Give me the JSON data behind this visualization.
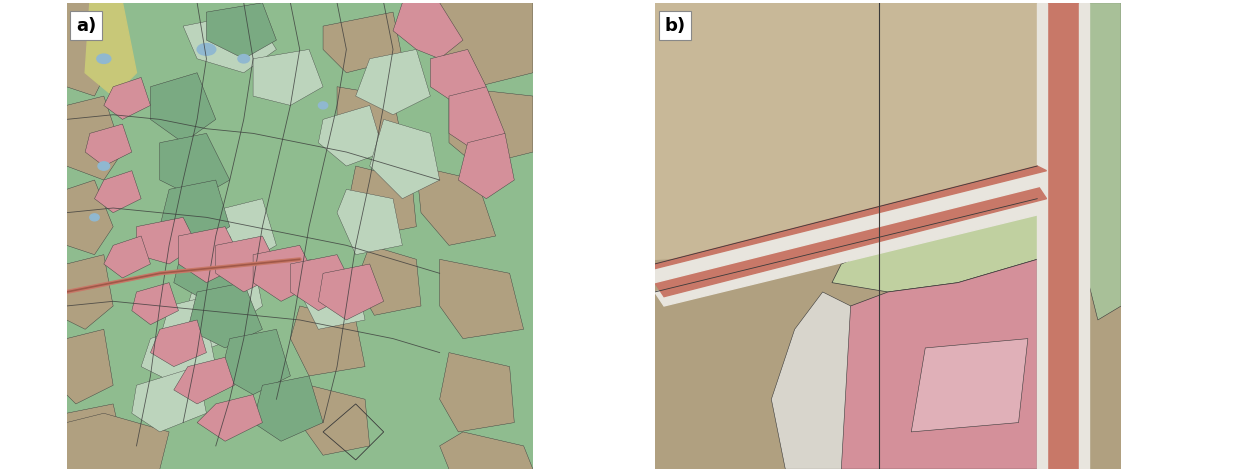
{
  "figure_width": 12.53,
  "figure_height": 4.72,
  "dpi": 100,
  "bg_color": "#ffffff",
  "panel_a_label": "a)",
  "panel_b_label": "b)",
  "label_fontsize": 13,
  "colors": {
    "forest_dark": "#7aaa82",
    "forest_medium": "#8fbc8f",
    "forest_light": "#a8c8a8",
    "forest_lighter": "#bcd4bc",
    "pink_urban": "#d4909a",
    "pink_light": "#e0b0b8",
    "brown_field": "#b0a080",
    "brown_light": "#c8b898",
    "brown_mid": "#a89878",
    "tan": "#b8ac90",
    "blue_water": "#7099b8",
    "light_blue": "#90b8d0",
    "yellow_green": "#c8c878",
    "road_red": "#c87868",
    "road_gray": "#d8d5cc",
    "white_gray": "#e8e5de",
    "outline_dark": "#3a3a3a",
    "outline_med": "#5a5a5a",
    "pale_green": "#c0d0a0",
    "light_green_b": "#c8dab0",
    "gray_white": "#d8d5cc",
    "hatch_area": "#c8b898",
    "right_green": "#a8c098"
  }
}
